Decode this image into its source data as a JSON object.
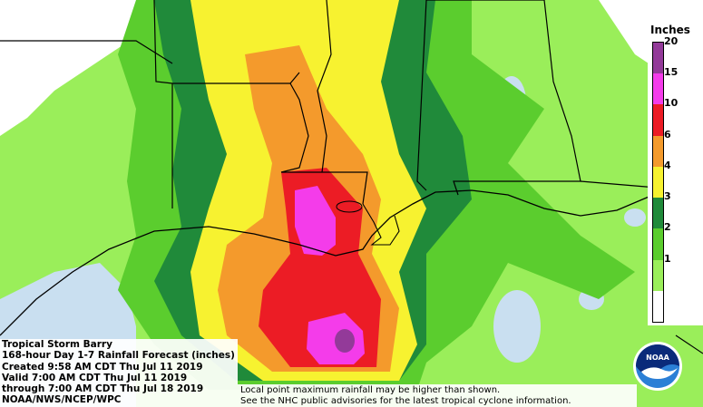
{
  "legend": {
    "title": "Inches",
    "classes": [
      {
        "label": "",
        "color": "#ffffff"
      },
      {
        "label": "1",
        "color": "#9aee5a"
      },
      {
        "label": "2",
        "color": "#5bcd2e"
      },
      {
        "label": "3",
        "color": "#208a3a"
      },
      {
        "label": "4",
        "color": "#f7f230"
      },
      {
        "label": "6",
        "color": "#f49a2c"
      },
      {
        "label": "10",
        "color": "#ec1c25"
      },
      {
        "label": "15",
        "color": "#f43cea"
      },
      {
        "label": "20",
        "color": "#933a99"
      }
    ]
  },
  "title_block": {
    "line1": "Tropical Storm Barry",
    "line2": "168-hour Day 1-7 Rainfall Forecast (inches)",
    "line3": "Created 9:58 AM CDT Thu Jul 11 2019",
    "line4": "Valid 7:00 AM CDT Thu Jul 11 2019",
    "line5": "through 7:00 AM CDT Thu Jul 18 2019",
    "line6": "NOAA/NWS/NCEP/WPC"
  },
  "disclaimer": {
    "line1": "Local point maximum rainfall may be higher than shown.",
    "line2": "See the NHC public advisories for the latest tropical cyclone information."
  },
  "logo": {
    "text": "NOAA",
    "colors": {
      "ring": "#ffffff",
      "top": "#0a2a7a",
      "bottom": "#2b7fd6",
      "bird": "#ffffff"
    }
  },
  "map_colors": {
    "background": "#ffffff",
    "water": "#c9dff0",
    "light_green": "#9aee5a",
    "green": "#5bcd2e",
    "dark_green": "#208a3a",
    "yellow": "#f7f230",
    "orange": "#f49a2c",
    "red": "#ec1c25",
    "magenta": "#f43cea",
    "purple": "#933a99",
    "borders": "#000000"
  }
}
